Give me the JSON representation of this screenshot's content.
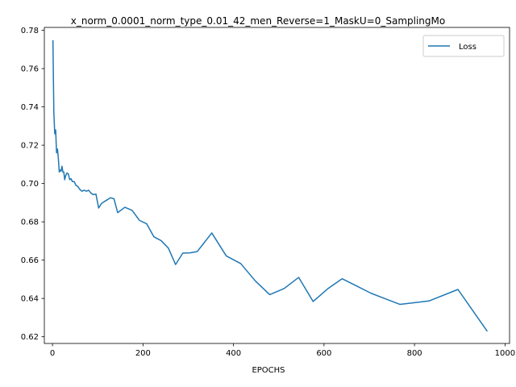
{
  "chart_data": {
    "type": "line",
    "title": "x_norm_0.0001_norm_type_0.01_42_men_Reverse=1_MaskU=0_SamplingMo",
    "xlabel": "EPOCHS",
    "ylabel": "",
    "xlim": [
      -18,
      1010
    ],
    "ylim": [
      0.6165,
      0.7815
    ],
    "xticks": [
      0,
      200,
      400,
      600,
      800,
      1000
    ],
    "xtick_labels": [
      "0",
      "200",
      "400",
      "600",
      "800",
      "1000"
    ],
    "yticks": [
      0.62,
      0.64,
      0.66,
      0.68,
      0.7,
      0.72,
      0.74,
      0.76,
      0.78
    ],
    "ytick_labels": [
      "0.62",
      "0.64",
      "0.66",
      "0.68",
      "0.70",
      "0.72",
      "0.74",
      "0.76",
      "0.78"
    ],
    "grid": false,
    "legend_position": "top-right",
    "series": [
      {
        "name": "Loss",
        "color": "#1f77b4",
        "x": [
          1,
          3,
          5,
          7,
          9,
          11,
          13,
          15,
          17,
          19,
          21,
          23,
          25,
          27,
          29,
          32,
          35,
          38,
          41,
          44,
          48,
          52,
          56,
          60,
          65,
          70,
          75,
          80,
          85,
          90,
          96,
          102,
          108,
          114,
          121,
          128,
          136,
          144,
          160,
          176,
          192,
          208,
          224,
          240,
          256,
          272,
          288,
          304,
          320,
          352,
          384,
          416,
          448,
          480,
          512,
          544,
          576,
          608,
          640,
          672,
          704,
          736,
          768,
          832,
          896,
          960
        ],
        "y": [
          0.7745,
          0.737,
          0.726,
          0.728,
          0.716,
          0.718,
          0.713,
          0.706,
          0.707,
          0.7065,
          0.709,
          0.706,
          0.706,
          0.702,
          0.704,
          0.7055,
          0.705,
          0.702,
          0.7025,
          0.701,
          0.701,
          0.699,
          0.6985,
          0.697,
          0.696,
          0.6965,
          0.696,
          0.6965,
          0.695,
          0.6942,
          0.6945,
          0.6872,
          0.6895,
          0.6905,
          0.6915,
          0.6926,
          0.692,
          0.6848,
          0.6876,
          0.686,
          0.6808,
          0.679,
          0.6722,
          0.6702,
          0.6663,
          0.6577,
          0.6637,
          0.6638,
          0.6645,
          0.6742,
          0.6622,
          0.6582,
          0.6492,
          0.642,
          0.6452,
          0.651,
          0.6384,
          0.645,
          0.6503,
          0.6465,
          0.6427,
          0.6398,
          0.6369,
          0.6387,
          0.6447,
          0.6231
        ]
      }
    ]
  }
}
